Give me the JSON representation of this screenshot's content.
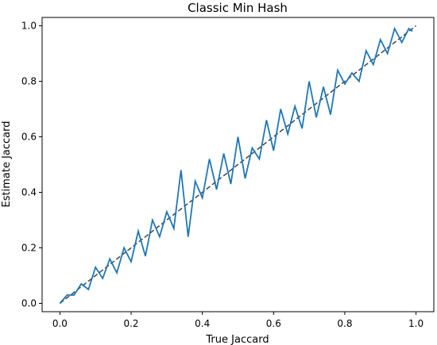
{
  "chart_data": {
    "type": "line",
    "title": "Classic Min Hash",
    "xlabel": "True Jaccard",
    "ylabel": "Estimate Jaccard",
    "xlim": [
      -0.05,
      1.05
    ],
    "ylim": [
      -0.03,
      1.03
    ],
    "xticks": [
      "0.0",
      "0.2",
      "0.4",
      "0.6",
      "0.8",
      "1.0"
    ],
    "yticks": [
      "0.0",
      "0.2",
      "0.4",
      "0.6",
      "0.8",
      "1.0"
    ],
    "grid": false,
    "legend": "none",
    "reference_line": {
      "from": [
        0,
        0
      ],
      "to": [
        1,
        1
      ],
      "style": "dashed",
      "color": "#444444"
    },
    "series": [
      {
        "color": "#1f77b4",
        "x": [
          0.0,
          0.02,
          0.04,
          0.06,
          0.08,
          0.1,
          0.12,
          0.14,
          0.16,
          0.18,
          0.2,
          0.22,
          0.24,
          0.26,
          0.28,
          0.3,
          0.32,
          0.34,
          0.36,
          0.38,
          0.4,
          0.42,
          0.44,
          0.46,
          0.48,
          0.5,
          0.52,
          0.54,
          0.56,
          0.58,
          0.6,
          0.62,
          0.64,
          0.66,
          0.68,
          0.7,
          0.72,
          0.74,
          0.76,
          0.78,
          0.8,
          0.82,
          0.84,
          0.86,
          0.88,
          0.9,
          0.92,
          0.94,
          0.96,
          0.98,
          0.99
        ],
        "y": [
          0.0,
          0.03,
          0.03,
          0.07,
          0.05,
          0.13,
          0.09,
          0.16,
          0.11,
          0.2,
          0.15,
          0.26,
          0.17,
          0.3,
          0.24,
          0.33,
          0.27,
          0.48,
          0.24,
          0.44,
          0.38,
          0.52,
          0.41,
          0.54,
          0.43,
          0.6,
          0.45,
          0.56,
          0.52,
          0.66,
          0.55,
          0.7,
          0.61,
          0.71,
          0.63,
          0.8,
          0.67,
          0.78,
          0.68,
          0.84,
          0.79,
          0.83,
          0.8,
          0.91,
          0.86,
          0.95,
          0.9,
          0.99,
          0.94,
          0.99,
          0.98
        ]
      }
    ]
  }
}
